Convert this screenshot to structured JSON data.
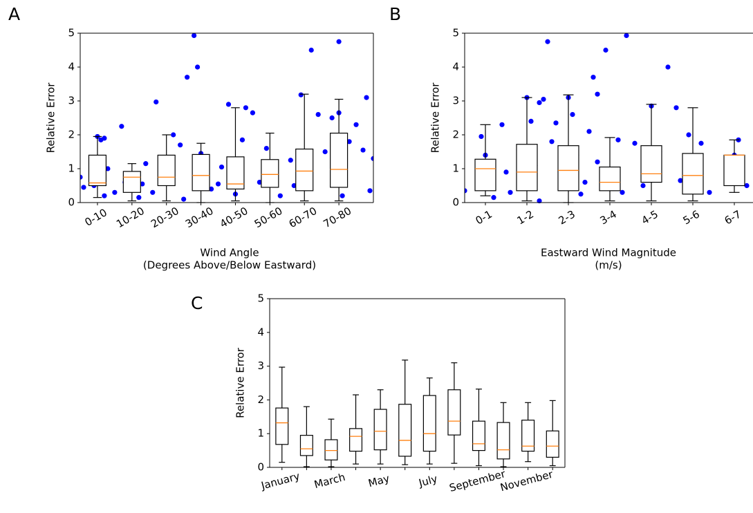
{
  "chart_data": [
    {
      "type": "box",
      "panel_label": "A",
      "ylabel": "Relative Error",
      "xlabel": [
        "Wind Angle",
        "(Degrees Above/Below Eastward)"
      ],
      "categories": [
        "0-10",
        "10-20",
        "20-30",
        "30-40",
        "40-50",
        "50-60",
        "60-70",
        "70-80"
      ],
      "whisker_low": [
        0.15,
        0.05,
        0.05,
        0,
        0.05,
        0,
        0.05,
        0.05
      ],
      "q1": [
        0.5,
        0.3,
        0.5,
        0.35,
        0.4,
        0.45,
        0.35,
        0.45
      ],
      "median": [
        0.58,
        0.75,
        0.75,
        0.8,
        0.55,
        0.83,
        0.93,
        0.98
      ],
      "q3": [
        1.4,
        0.92,
        1.4,
        1.42,
        1.35,
        1.27,
        1.58,
        2.05
      ],
      "whisker_high": [
        1.95,
        1.15,
        2.0,
        1.75,
        2.8,
        2.05,
        3.2,
        3.05
      ],
      "box_color": "#000000",
      "median_color": "#ff7f0e",
      "points": {
        "color": "#0000ff",
        "x": [
          0.5,
          0.6,
          0.9,
          1.0,
          1.1,
          1.2,
          1.3,
          1.5,
          1.7,
          1.8,
          2.0,
          2.2,
          2.4,
          2.6,
          2.7,
          2.9,
          3.0,
          3.2,
          3.4,
          3.6,
          3.8,
          3.9,
          4.0,
          4.3,
          4.5,
          4.8,
          5.0,
          5.2,
          5.3,
          5.5,
          5.7,
          5.9,
          6.1,
          6.3,
          6.6,
          6.9,
          7.2,
          7.4,
          7.6,
          7.8,
          8.0,
          8.0,
          8.1,
          8.3,
          8.5,
          8.7,
          8.8,
          8.9,
          9.0,
          6.7,
          7.9,
          4.6,
          2.3,
          1.2,
          3.5
        ],
        "y": [
          0.75,
          0.45,
          0.5,
          1.95,
          1.85,
          1.9,
          1.0,
          0.3,
          2.25,
          0.6,
          0.85,
          0.15,
          1.15,
          0.3,
          2.97,
          1.25,
          0.8,
          2.0,
          1.7,
          3.7,
          4.93,
          4.0,
          1.45,
          0.4,
          0.55,
          2.9,
          0.25,
          1.85,
          2.8,
          2.65,
          0.6,
          1.6,
          1.1,
          0.2,
          1.25,
          3.18,
          4.5,
          2.6,
          1.5,
          2.5,
          4.75,
          2.65,
          0.2,
          1.8,
          2.3,
          1.55,
          3.1,
          0.35,
          1.3,
          0.5,
          0.8,
          1.05,
          0.55,
          0.2,
          0.1
        ]
      },
      "xlim": [
        0.5,
        9.0
      ],
      "ylim": [
        0,
        5
      ],
      "yticks": [
        0,
        1,
        2,
        3,
        4,
        5
      ]
    },
    {
      "type": "box",
      "panel_label": "B",
      "ylabel": "Relative Error",
      "xlabel": [
        "Eastward Wind Magnitude",
        "(m/s)"
      ],
      "categories": [
        "0-1",
        "1-2",
        "2-3",
        "3-4",
        "4-5",
        "5-6",
        "6-7"
      ],
      "whisker_low": [
        0.2,
        0.05,
        0,
        0.05,
        0.05,
        0.05,
        0.3
      ],
      "q1": [
        0.35,
        0.35,
        0.35,
        0.35,
        0.6,
        0.25,
        0.5
      ],
      "median": [
        1.0,
        0.9,
        0.95,
        0.6,
        0.85,
        0.8,
        1.4
      ],
      "q3": [
        1.28,
        1.72,
        1.68,
        1.05,
        1.68,
        1.45,
        1.4
      ],
      "whisker_high": [
        2.3,
        3.1,
        3.18,
        1.92,
        2.9,
        2.8,
        1.85
      ],
      "box_color": "#000000",
      "median_color": "#ff7f0e",
      "points": {
        "color": "#0000ff",
        "x": [
          0.5,
          0.9,
          1.0,
          1.2,
          1.4,
          1.6,
          1.8,
          1.9,
          2.0,
          2.1,
          2.2,
          2.3,
          2.4,
          2.5,
          2.6,
          2.7,
          2.8,
          2.9,
          3.0,
          3.1,
          3.2,
          3.3,
          3.5,
          3.6,
          3.7,
          3.7,
          3.9,
          4.0,
          4.2,
          4.4,
          4.6,
          4.8,
          5.0,
          5.2,
          5.4,
          5.6,
          5.7,
          5.9,
          6.2,
          6.4,
          7.0,
          7.3,
          7.1,
          1.5,
          2.3,
          3.4,
          4.3,
          4.9
        ],
        "y": [
          0.35,
          1.95,
          1.4,
          0.15,
          2.3,
          0.3,
          1.55,
          0.6,
          3.1,
          2.4,
          1.1,
          2.95,
          3.05,
          4.75,
          1.8,
          2.35,
          0.9,
          1.6,
          3.1,
          2.6,
          1.4,
          0.25,
          2.1,
          3.7,
          1.2,
          3.2,
          4.5,
          0.7,
          1.85,
          4.93,
          1.75,
          0.5,
          2.85,
          1.5,
          4.0,
          2.8,
          0.65,
          2.0,
          1.75,
          0.3,
          1.4,
          0.5,
          1.85,
          0.9,
          0.05,
          0.6,
          0.3,
          1.1
        ]
      },
      "xlim": [
        0.5,
        7.45
      ],
      "ylim": [
        0,
        5
      ],
      "yticks": [
        0,
        1,
        2,
        3,
        4,
        5
      ]
    },
    {
      "type": "box",
      "panel_label": "C",
      "ylabel": "Relative Error",
      "categories": [
        "January",
        null,
        "March",
        null,
        "May",
        null,
        "July",
        null,
        "September",
        null,
        "November",
        null
      ],
      "whisker_low": [
        0.15,
        0.02,
        0.02,
        0.1,
        0.1,
        0.08,
        0.1,
        0.12,
        0.05,
        0.02,
        0.17,
        0.05
      ],
      "q1": [
        0.68,
        0.35,
        0.22,
        0.48,
        0.52,
        0.33,
        0.48,
        0.96,
        0.5,
        0.25,
        0.48,
        0.3
      ],
      "median": [
        1.32,
        0.55,
        0.5,
        0.92,
        1.07,
        0.8,
        1.0,
        1.37,
        0.7,
        0.52,
        0.63,
        0.63
      ],
      "q3": [
        1.76,
        0.95,
        0.82,
        1.15,
        1.72,
        1.87,
        2.13,
        2.3,
        1.37,
        1.33,
        1.4,
        1.08
      ],
      "whisker_high": [
        2.97,
        1.8,
        1.43,
        2.15,
        2.3,
        3.18,
        2.65,
        3.1,
        2.32,
        1.92,
        1.92,
        1.98
      ],
      "box_color": "#000000",
      "median_color": "#ff7f0e",
      "xlim": [
        0.5,
        12.5
      ],
      "ylim": [
        0,
        5
      ],
      "yticks": [
        0,
        1,
        2,
        3,
        4,
        5
      ]
    }
  ]
}
